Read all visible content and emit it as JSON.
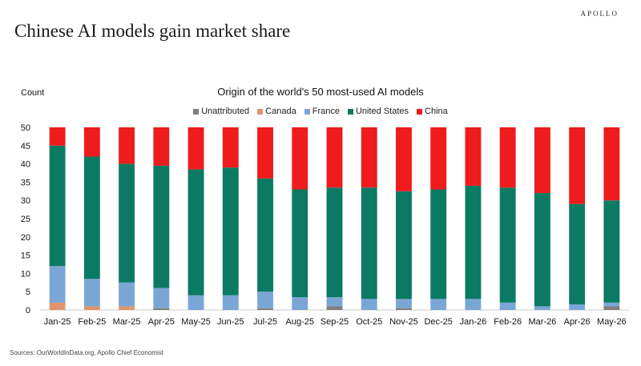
{
  "brand": "APOLLO",
  "headline": "Chinese AI models gain market share",
  "source": "Sources: OurWorldInData.org, Apollo Chief Economist",
  "chart_data": {
    "type": "bar",
    "stacked": true,
    "title": "Origin of the world's 50 most-used AI models",
    "ylabel": "Count",
    "ylim": [
      0,
      50
    ],
    "yticks": [
      0,
      5,
      10,
      15,
      20,
      25,
      30,
      35,
      40,
      45,
      50
    ],
    "legend_position": "top",
    "categories": [
      "Jan-25",
      "Feb-25",
      "Mar-25",
      "Apr-25",
      "May-25",
      "Jun-25",
      "Jul-25",
      "Aug-25",
      "Sep-25",
      "Oct-25",
      "Nov-25",
      "Dec-25",
      "Jan-26",
      "Feb-26",
      "Mar-26",
      "Apr-26",
      "May-26"
    ],
    "series": [
      {
        "name": "Unattributed",
        "color": "#7f7f7f",
        "values": [
          0,
          0,
          0,
          0.5,
          0,
          0,
          0.5,
          0,
          1,
          0,
          0.5,
          0,
          0,
          0,
          0,
          0,
          1
        ]
      },
      {
        "name": "Canada",
        "color": "#e0956b",
        "values": [
          2,
          1,
          1,
          0,
          0,
          0,
          0,
          0,
          0,
          0,
          0,
          0,
          0,
          0,
          0,
          0,
          0
        ]
      },
      {
        "name": "France",
        "color": "#7aa6d6",
        "values": [
          10,
          7.5,
          6.5,
          5.5,
          4,
          4,
          4.5,
          3.5,
          2.5,
          3,
          2.5,
          3,
          3,
          2,
          1,
          1.5,
          1
        ]
      },
      {
        "name": "United States",
        "color": "#0b7a63",
        "values": [
          33,
          33.5,
          32.5,
          33.5,
          34.5,
          35,
          31,
          29.5,
          30,
          30.5,
          29.5,
          30,
          31,
          31.5,
          31,
          27.5,
          28
        ]
      },
      {
        "name": "China",
        "color": "#ee1c1c",
        "values": [
          5,
          8,
          10,
          10.5,
          11.5,
          11,
          14,
          17,
          16.5,
          16.5,
          17.5,
          17,
          16,
          16.5,
          18,
          21,
          20
        ]
      }
    ]
  }
}
